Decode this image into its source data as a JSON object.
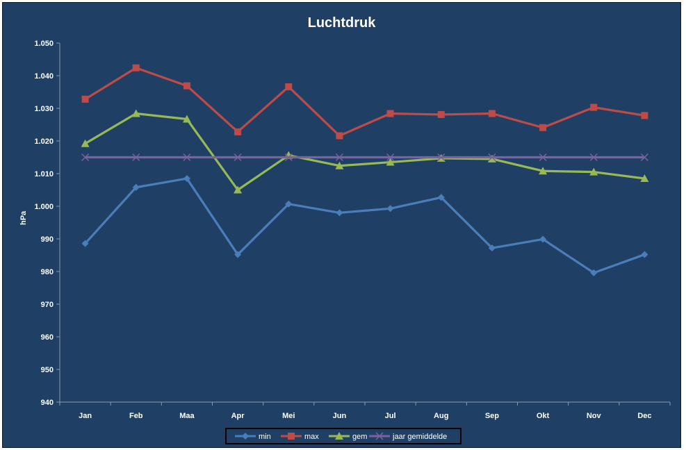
{
  "chart_data": {
    "type": "line",
    "title": "Luchtdruk",
    "xlabel": "",
    "ylabel": "hPa",
    "categories": [
      "Jan",
      "Feb",
      "Maa",
      "Apr",
      "Mei",
      "Jun",
      "Jul",
      "Aug",
      "Sep",
      "Okt",
      "Nov",
      "Dec"
    ],
    "ylim": [
      940,
      1050
    ],
    "yticks": [
      940,
      950,
      960,
      970,
      980,
      990,
      1000,
      1010,
      1020,
      1030,
      1040,
      1050
    ],
    "ytick_labels": [
      "940",
      "950",
      "960",
      "970",
      "980",
      "990",
      "1.000",
      "1.010",
      "1.020",
      "1.030",
      "1.040",
      "1.050"
    ],
    "grid": false,
    "legend_position": "bottom",
    "series": [
      {
        "name": "min",
        "color": "#4a7ebb",
        "marker": "diamond",
        "values": [
          988.6,
          1005.8,
          1008.5,
          985.2,
          1000.7,
          998.0,
          999.3,
          1002.7,
          987.2,
          989.9,
          979.6,
          985.2
        ]
      },
      {
        "name": "max",
        "color": "#be4b48",
        "marker": "square",
        "values": [
          1032.8,
          1042.4,
          1036.9,
          1022.8,
          1036.6,
          1021.6,
          1028.4,
          1028.1,
          1028.4,
          1024.1,
          1030.3,
          1027.8
        ]
      },
      {
        "name": "gem",
        "color": "#98b954",
        "marker": "triangle",
        "values": [
          1019.2,
          1028.4,
          1026.7,
          1005.0,
          1015.6,
          1012.4,
          1013.5,
          1014.7,
          1014.5,
          1010.8,
          1010.5,
          1008.5
        ]
      },
      {
        "name": "jaar gemiddelde",
        "color": "#7d60a0",
        "marker": "x",
        "values": [
          1015.0,
          1015.0,
          1015.0,
          1015.0,
          1015.0,
          1015.0,
          1015.0,
          1015.0,
          1015.0,
          1015.0,
          1015.0,
          1015.0
        ]
      }
    ]
  }
}
